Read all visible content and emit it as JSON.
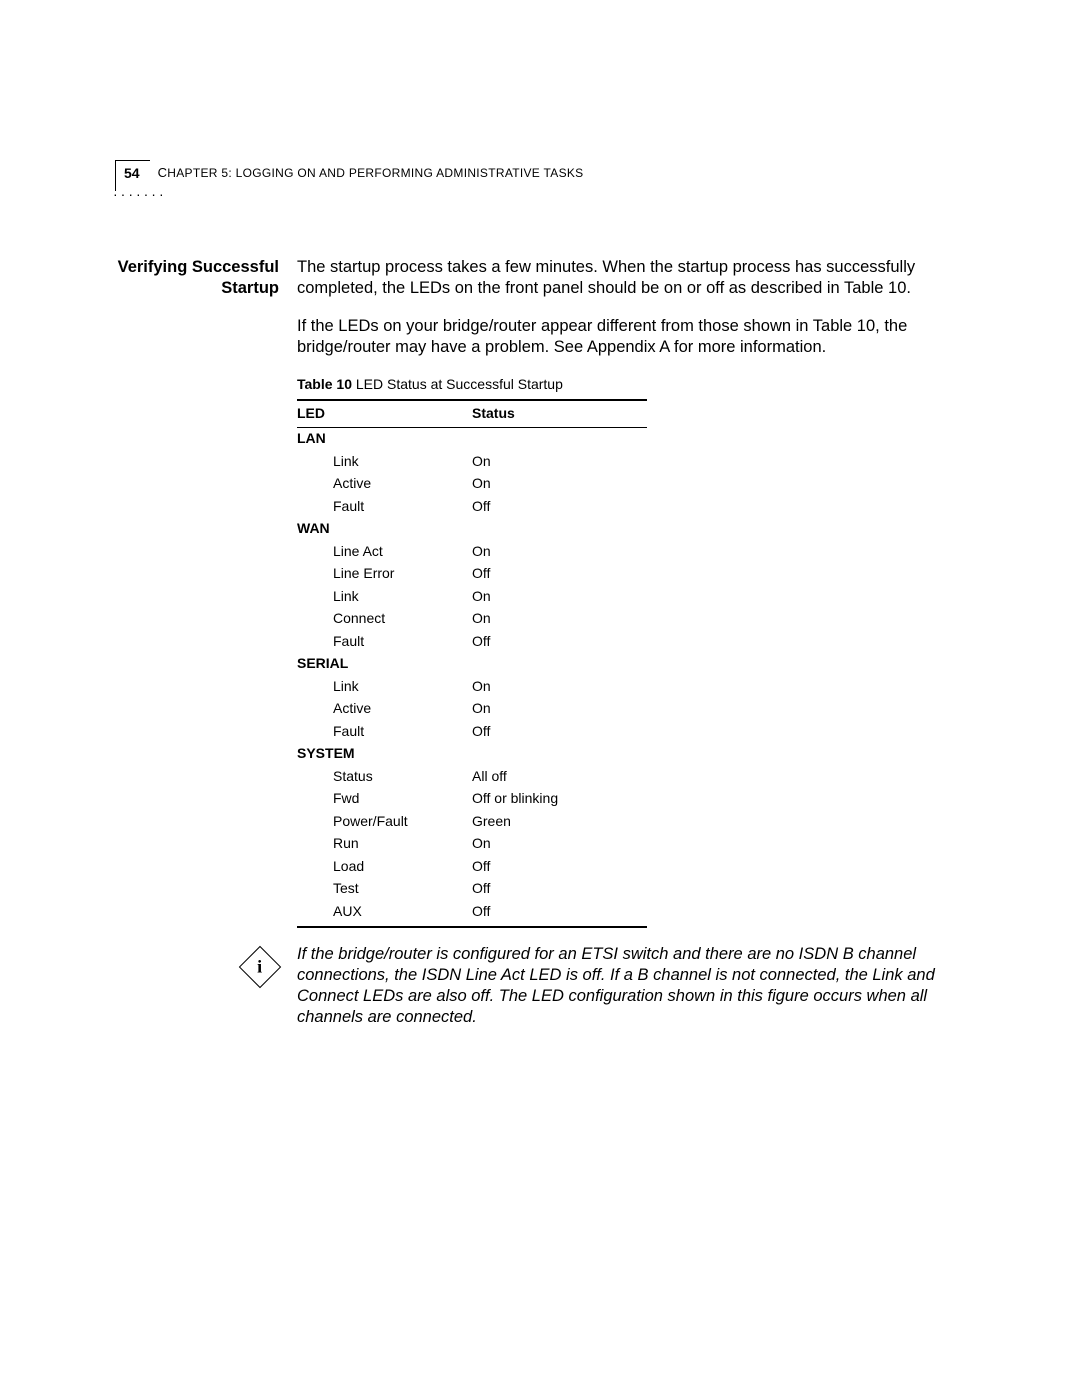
{
  "page_number": "54",
  "chapter_label_prefix": "C",
  "chapter_label_rest": "HAPTER 5: LOGGING ON AND PERFORMING ADMINISTRATIVE TASKS",
  "side_heading_line1": "Verifying Successful",
  "side_heading_line2": "Startup",
  "para1": "The startup process takes a few minutes. When the startup process has successfully completed, the LEDs on the front panel should be on or off as described in Table 10.",
  "para2": "If the LEDs on your bridge/router appear different from those shown in Table 10, the bridge/router may have a problem. See Appendix A for more information.",
  "table_caption_bold": "Table 10",
  "table_caption_rest": "   LED Status at Successful Startup",
  "table": {
    "headers": [
      "LED",
      "Status"
    ],
    "groups": [
      {
        "name": "LAN",
        "rows": [
          [
            "Link",
            "On"
          ],
          [
            "Active",
            "On"
          ],
          [
            "Fault",
            "Off"
          ]
        ]
      },
      {
        "name": "WAN",
        "rows": [
          [
            "Line Act",
            "On"
          ],
          [
            "Line Error",
            "Off"
          ],
          [
            "Link",
            "On"
          ],
          [
            "Connect",
            "On"
          ],
          [
            "Fault",
            "Off"
          ]
        ]
      },
      {
        "name": "SERIAL",
        "rows": [
          [
            "Link",
            "On"
          ],
          [
            "Active",
            "On"
          ],
          [
            "Fault",
            "Off"
          ]
        ]
      },
      {
        "name": "SYSTEM",
        "rows": [
          [
            "Status",
            "All off"
          ],
          [
            "Fwd",
            "Off or blinking"
          ],
          [
            "Power/Fault",
            "Green"
          ],
          [
            "Run",
            "On"
          ],
          [
            "Load",
            "Off"
          ],
          [
            "Test",
            "Off"
          ],
          [
            "AUX",
            "Off"
          ]
        ]
      }
    ]
  },
  "note_text": "If the bridge/router is configured for an ETSI switch and there are no ISDN B channel connections, the ISDN Line Act LED is off. If a B channel is not connected, the Link and Connect LEDs are also off. The LED configuration shown in this figure occurs when all channels are connected.",
  "note_icon_glyph": "i",
  "colors": {
    "text": "#000000",
    "background": "#ffffff",
    "rule": "#000000"
  },
  "fonts": {
    "body_size_pt": 12,
    "table_size_pt": 10,
    "caption_size_pt": 10,
    "heading_weight": "bold"
  }
}
